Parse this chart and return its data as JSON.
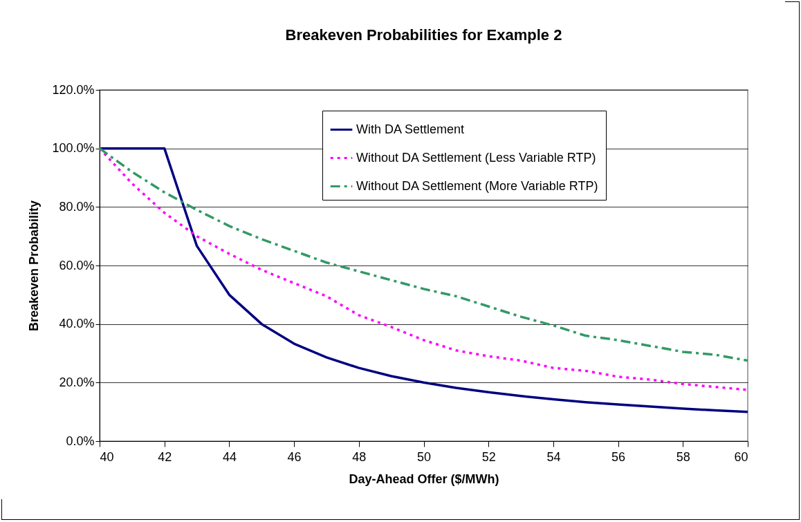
{
  "chart_data": {
    "type": "line",
    "title": "Breakeven Probabilities for Example 2",
    "xlabel": "Day-Ahead Offer ($/MWh)",
    "ylabel": "Breakeven Probability",
    "x": [
      40,
      41,
      42,
      43,
      44,
      45,
      46,
      47,
      48,
      49,
      50,
      51,
      52,
      53,
      54,
      55,
      56,
      57,
      58,
      59,
      60
    ],
    "series": [
      {
        "name": "With DA Settlement",
        "color": "#000080",
        "line_style": "solid",
        "values": [
          100,
          100,
          100,
          66.7,
          50,
          40,
          33.3,
          28.6,
          25,
          22.2,
          20,
          18.2,
          16.7,
          15.4,
          14.3,
          13.3,
          12.5,
          11.8,
          11.1,
          10.5,
          10
        ]
      },
      {
        "name": "Without DA Settlement (Less Variable RTP)",
        "color": "#ff00ff",
        "line_style": "dotted",
        "values": [
          100,
          88,
          78,
          70,
          64,
          58.5,
          54,
          49.5,
          43,
          39,
          34.5,
          31,
          29,
          27.5,
          25,
          24,
          22,
          21,
          19.5,
          18.5,
          17.5
        ]
      },
      {
        "name": "Without DA Settlement (More Variable RTP)",
        "color": "#339966",
        "line_style": "dashed",
        "values": [
          100,
          92,
          85,
          79,
          73.5,
          69,
          65,
          61,
          58,
          55,
          52,
          49.5,
          46,
          42.5,
          39.5,
          36,
          34.5,
          32.5,
          30.5,
          29.5,
          27.5
        ]
      }
    ],
    "xlim": [
      40,
      60
    ],
    "xticks": [
      40,
      42,
      44,
      46,
      48,
      50,
      52,
      54,
      56,
      58,
      60
    ],
    "ylim": [
      0,
      120
    ],
    "yticks": [
      {
        "value": 0,
        "label": "0.0%"
      },
      {
        "value": 20,
        "label": "20.0%"
      },
      {
        "value": 40,
        "label": "40.0%"
      },
      {
        "value": 60,
        "label": "60.0%"
      },
      {
        "value": 80,
        "label": "80.0%"
      },
      {
        "value": 100,
        "label": "100.0%"
      },
      {
        "value": 120,
        "label": "120.0%"
      }
    ],
    "grid": "y",
    "legend": "top right",
    "marker": "none"
  }
}
